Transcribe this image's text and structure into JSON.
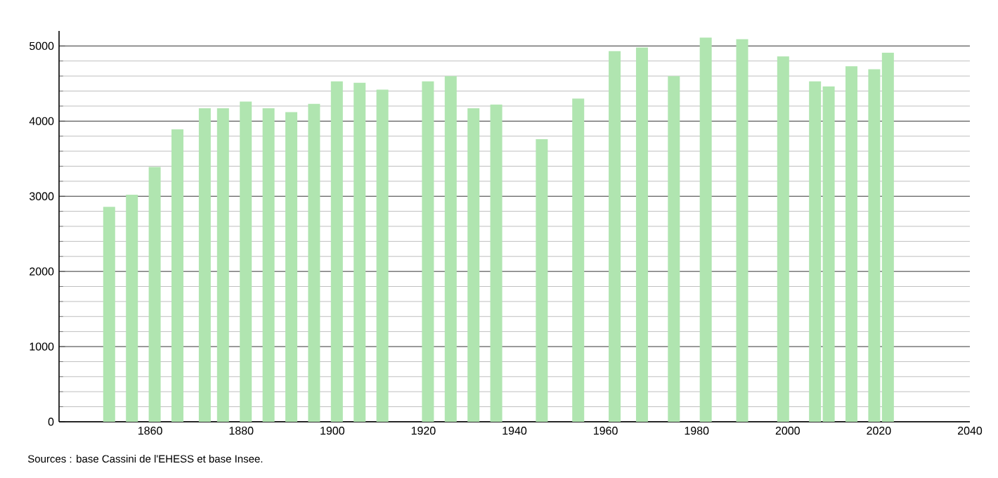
{
  "chart_data": {
    "type": "bar",
    "x": [
      1851,
      1856,
      1861,
      1866,
      1872,
      1876,
      1881,
      1886,
      1891,
      1896,
      1901,
      1906,
      1911,
      1921,
      1926,
      1931,
      1936,
      1946,
      1954,
      1962,
      1968,
      1975,
      1982,
      1990,
      1999,
      2006,
      2009,
      2014,
      2019,
      2022
    ],
    "values": [
      2860,
      3020,
      3390,
      3890,
      4170,
      4170,
      4260,
      4170,
      4120,
      4230,
      4530,
      4510,
      4420,
      4530,
      4600,
      4170,
      4220,
      3760,
      4300,
      4930,
      4980,
      4600,
      5110,
      5090,
      4860,
      4530,
      4460,
      4730,
      4690,
      4910
    ],
    "color": "#b0e5b0",
    "xlim": [
      1840,
      2040
    ],
    "xticks": [
      1860,
      1880,
      1900,
      1920,
      1940,
      1960,
      1980,
      2000,
      2020,
      2040
    ],
    "ylim": [
      0,
      5200
    ],
    "yticks": [
      0,
      1000,
      2000,
      3000,
      4000,
      5000
    ],
    "grid": "y",
    "annotations": [
      "Sources : base Cassini de l'EHESS et base Insee."
    ]
  }
}
